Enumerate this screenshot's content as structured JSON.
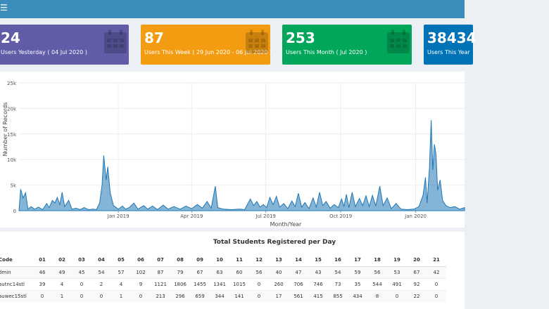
{
  "header": {
    "menu_icon": "hamburger-icon"
  },
  "info_boxes": [
    {
      "number": "24",
      "label": "Users Yesterday ( 04 Jul 2020 )",
      "color": "#605ca8",
      "icon": "calendar-icon"
    },
    {
      "number": "87",
      "label": "Users This Week ( 29 Jun 2020 - 06 Jul 2020 )",
      "color": "#f39c12",
      "icon": "calendar-icon"
    },
    {
      "number": "253",
      "label": "Users This Month ( Jul 2020 )",
      "color": "#00a65a",
      "icon": "calendar-icon"
    },
    {
      "number": "38434",
      "label": "Users This Year",
      "color": "#0073b7",
      "icon": "calendar-icon"
    }
  ],
  "chart_data": {
    "type": "area",
    "xlabel": "Month/Year",
    "ylabel": "Number of Records",
    "ylim": [
      0,
      25000
    ],
    "yticks": [
      "0",
      "5k",
      "10k",
      "15k",
      "20k",
      "25k"
    ],
    "xticks": [
      "Jan 2019",
      "Apr 2019",
      "Jul 2019",
      "Oct 2019",
      "Jan 2020"
    ],
    "color": "#1f77b4",
    "grid": true,
    "x_start": "2018-09-01",
    "x_end": "2020-03-01",
    "series": [
      {
        "x": "2018-09-01",
        "y": 0
      },
      {
        "x": "2018-09-03",
        "y": 4200
      },
      {
        "x": "2018-09-06",
        "y": 2500
      },
      {
        "x": "2018-09-09",
        "y": 3500
      },
      {
        "x": "2018-09-12",
        "y": 300
      },
      {
        "x": "2018-09-16",
        "y": 800
      },
      {
        "x": "2018-09-20",
        "y": 300
      },
      {
        "x": "2018-09-25",
        "y": 700
      },
      {
        "x": "2018-09-30",
        "y": 200
      },
      {
        "x": "2018-10-05",
        "y": 1400
      },
      {
        "x": "2018-10-08",
        "y": 600
      },
      {
        "x": "2018-10-12",
        "y": 2000
      },
      {
        "x": "2018-10-15",
        "y": 1500
      },
      {
        "x": "2018-10-18",
        "y": 2600
      },
      {
        "x": "2018-10-21",
        "y": 1200
      },
      {
        "x": "2018-10-24",
        "y": 3600
      },
      {
        "x": "2018-10-27",
        "y": 800
      },
      {
        "x": "2018-11-01",
        "y": 2000
      },
      {
        "x": "2018-11-05",
        "y": 300
      },
      {
        "x": "2018-11-10",
        "y": 500
      },
      {
        "x": "2018-11-15",
        "y": 200
      },
      {
        "x": "2018-11-20",
        "y": 600
      },
      {
        "x": "2018-11-25",
        "y": 200
      },
      {
        "x": "2018-12-01",
        "y": 300
      },
      {
        "x": "2018-12-05",
        "y": 200
      },
      {
        "x": "2018-12-09",
        "y": 1500
      },
      {
        "x": "2018-12-12",
        "y": 5000
      },
      {
        "x": "2018-12-14",
        "y": 10800
      },
      {
        "x": "2018-12-17",
        "y": 6000
      },
      {
        "x": "2018-12-19",
        "y": 8600
      },
      {
        "x": "2018-12-22",
        "y": 3500
      },
      {
        "x": "2018-12-26",
        "y": 1000
      },
      {
        "x": "2019-01-01",
        "y": 300
      },
      {
        "x": "2019-01-06",
        "y": 900
      },
      {
        "x": "2019-01-10",
        "y": 300
      },
      {
        "x": "2019-01-15",
        "y": 700
      },
      {
        "x": "2019-01-20",
        "y": 1500
      },
      {
        "x": "2019-01-25",
        "y": 300
      },
      {
        "x": "2019-02-01",
        "y": 1000
      },
      {
        "x": "2019-02-06",
        "y": 300
      },
      {
        "x": "2019-02-12",
        "y": 900
      },
      {
        "x": "2019-02-18",
        "y": 200
      },
      {
        "x": "2019-02-25",
        "y": 1100
      },
      {
        "x": "2019-03-03",
        "y": 300
      },
      {
        "x": "2019-03-10",
        "y": 800
      },
      {
        "x": "2019-03-18",
        "y": 300
      },
      {
        "x": "2019-03-25",
        "y": 900
      },
      {
        "x": "2019-04-01",
        "y": 400
      },
      {
        "x": "2019-04-08",
        "y": 1200
      },
      {
        "x": "2019-04-14",
        "y": 500
      },
      {
        "x": "2019-04-20",
        "y": 1800
      },
      {
        "x": "2019-04-25",
        "y": 500
      },
      {
        "x": "2019-04-30",
        "y": 4800
      },
      {
        "x": "2019-05-03",
        "y": 600
      },
      {
        "x": "2019-05-10",
        "y": 300
      },
      {
        "x": "2019-05-20",
        "y": 200
      },
      {
        "x": "2019-05-30",
        "y": 300
      },
      {
        "x": "2019-06-05",
        "y": 200
      },
      {
        "x": "2019-06-12",
        "y": 2300
      },
      {
        "x": "2019-06-16",
        "y": 1000
      },
      {
        "x": "2019-06-20",
        "y": 1800
      },
      {
        "x": "2019-06-24",
        "y": 700
      },
      {
        "x": "2019-06-28",
        "y": 1200
      },
      {
        "x": "2019-07-02",
        "y": 600
      },
      {
        "x": "2019-07-06",
        "y": 2600
      },
      {
        "x": "2019-07-10",
        "y": 1200
      },
      {
        "x": "2019-07-14",
        "y": 2800
      },
      {
        "x": "2019-07-18",
        "y": 700
      },
      {
        "x": "2019-07-23",
        "y": 1400
      },
      {
        "x": "2019-07-28",
        "y": 400
      },
      {
        "x": "2019-08-02",
        "y": 1900
      },
      {
        "x": "2019-08-06",
        "y": 800
      },
      {
        "x": "2019-08-10",
        "y": 3400
      },
      {
        "x": "2019-08-14",
        "y": 700
      },
      {
        "x": "2019-08-18",
        "y": 1600
      },
      {
        "x": "2019-08-23",
        "y": 400
      },
      {
        "x": "2019-08-28",
        "y": 2500
      },
      {
        "x": "2019-09-01",
        "y": 700
      },
      {
        "x": "2019-09-05",
        "y": 3600
      },
      {
        "x": "2019-09-09",
        "y": 1000
      },
      {
        "x": "2019-09-13",
        "y": 1800
      },
      {
        "x": "2019-09-18",
        "y": 500
      },
      {
        "x": "2019-09-23",
        "y": 1200
      },
      {
        "x": "2019-09-28",
        "y": 600
      },
      {
        "x": "2019-10-02",
        "y": 2300
      },
      {
        "x": "2019-10-05",
        "y": 800
      },
      {
        "x": "2019-10-08",
        "y": 3200
      },
      {
        "x": "2019-10-11",
        "y": 600
      },
      {
        "x": "2019-10-15",
        "y": 3600
      },
      {
        "x": "2019-10-19",
        "y": 800
      },
      {
        "x": "2019-10-24",
        "y": 2400
      },
      {
        "x": "2019-10-28",
        "y": 1000
      },
      {
        "x": "2019-11-01",
        "y": 2900
      },
      {
        "x": "2019-11-05",
        "y": 800
      },
      {
        "x": "2019-11-09",
        "y": 3000
      },
      {
        "x": "2019-11-13",
        "y": 900
      },
      {
        "x": "2019-11-18",
        "y": 4800
      },
      {
        "x": "2019-11-22",
        "y": 1000
      },
      {
        "x": "2019-11-27",
        "y": 2500
      },
      {
        "x": "2019-12-02",
        "y": 400
      },
      {
        "x": "2019-12-08",
        "y": 1400
      },
      {
        "x": "2019-12-14",
        "y": 300
      },
      {
        "x": "2019-12-22",
        "y": 200
      },
      {
        "x": "2019-12-30",
        "y": 300
      },
      {
        "x": "2020-01-05",
        "y": 800
      },
      {
        "x": "2020-01-10",
        "y": 3000
      },
      {
        "x": "2020-01-13",
        "y": 6500
      },
      {
        "x": "2020-01-15",
        "y": 1500
      },
      {
        "x": "2020-01-18",
        "y": 8500
      },
      {
        "x": "2020-01-20",
        "y": 17700
      },
      {
        "x": "2020-01-22",
        "y": 8000
      },
      {
        "x": "2020-01-24",
        "y": 13000
      },
      {
        "x": "2020-01-26",
        "y": 11000
      },
      {
        "x": "2020-01-28",
        "y": 4000
      },
      {
        "x": "2020-01-31",
        "y": 6000
      },
      {
        "x": "2020-02-03",
        "y": 2000
      },
      {
        "x": "2020-02-07",
        "y": 1000
      },
      {
        "x": "2020-02-12",
        "y": 600
      },
      {
        "x": "2020-02-18",
        "y": 800
      },
      {
        "x": "2020-02-24",
        "y": 300
      },
      {
        "x": "2020-03-01",
        "y": 600
      }
    ]
  },
  "table": {
    "title": "Total Students Registered per Day",
    "code_header": "Code",
    "days": [
      "01",
      "02",
      "03",
      "04",
      "05",
      "06",
      "07",
      "08",
      "09",
      "10",
      "11",
      "12",
      "13",
      "14",
      "15",
      "16",
      "17",
      "18",
      "19",
      "20",
      "21"
    ],
    "rows": [
      {
        "code": "dmin",
        "values": [
          "46",
          "49",
          "45",
          "54",
          "57",
          "102",
          "87",
          "79",
          "67",
          "63",
          "60",
          "56",
          "40",
          "47",
          "43",
          "54",
          "59",
          "56",
          "53",
          "67",
          "42"
        ]
      },
      {
        "code": "autnc14stl",
        "values": [
          "39",
          "4",
          "0",
          "2",
          "4",
          "9",
          "1121",
          "1806",
          "1455",
          "1341",
          "1015",
          "0",
          "260",
          "706",
          "746",
          "73",
          "35",
          "544",
          "491",
          "92",
          "0"
        ]
      },
      {
        "code": "auwec15stl",
        "values": [
          "0",
          "1",
          "0",
          "0",
          "1",
          "0",
          "213",
          "296",
          "659",
          "344",
          "141",
          "0",
          "17",
          "561",
          "415",
          "855",
          "434",
          "8",
          "0",
          "22",
          "0"
        ]
      }
    ]
  }
}
